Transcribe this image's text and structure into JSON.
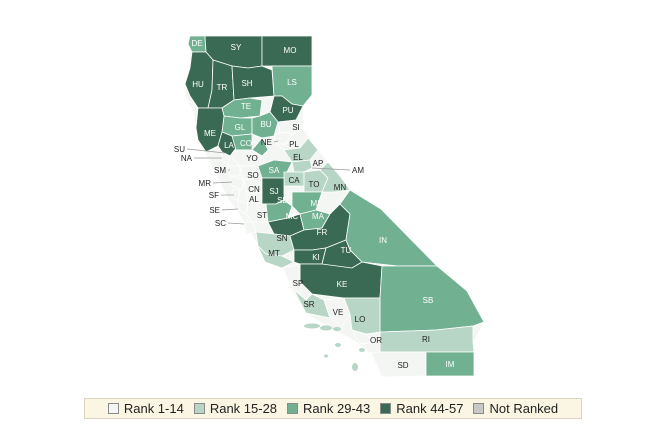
{
  "colors": {
    "rank_1_14": "#f4f6f4",
    "rank_15_28": "#b7d6c6",
    "rank_29_43": "#71b192",
    "rank_44_57": "#3a6a54",
    "not_ranked": "#c8c8c8",
    "border": "#ffffff",
    "leader": "#999999"
  },
  "legend": [
    {
      "label": "Rank 1-14",
      "color": "#f4f6f4"
    },
    {
      "label": "Rank 15-28",
      "color": "#b7d6c6"
    },
    {
      "label": "Rank 29-43",
      "color": "#71b192"
    },
    {
      "label": "Rank 44-57",
      "color": "#3a6a54"
    },
    {
      "label": "Not Ranked",
      "color": "#c8c8c8"
    }
  ],
  "counties": [
    {
      "code": "DE",
      "rank_group": "29-43"
    },
    {
      "code": "SY",
      "rank_group": "44-57"
    },
    {
      "code": "MO",
      "rank_group": "44-57"
    },
    {
      "code": "HU",
      "rank_group": "44-57"
    },
    {
      "code": "TR",
      "rank_group": "44-57"
    },
    {
      "code": "SH",
      "rank_group": "44-57"
    },
    {
      "code": "LS",
      "rank_group": "29-43"
    },
    {
      "code": "TE",
      "rank_group": "29-43"
    },
    {
      "code": "PU",
      "rank_group": "44-57"
    },
    {
      "code": "GL",
      "rank_group": "29-43"
    },
    {
      "code": "BU",
      "rank_group": "29-43"
    },
    {
      "code": "SI",
      "rank_group": "1-14"
    },
    {
      "code": "YU",
      "rank_group": "1-14"
    },
    {
      "code": "NE",
      "rank_group": "1-14"
    },
    {
      "code": "PL",
      "rank_group": "1-14"
    },
    {
      "code": "ME",
      "rank_group": "44-57"
    },
    {
      "code": "LA",
      "rank_group": "44-57"
    },
    {
      "code": "CO",
      "rank_group": "29-43"
    },
    {
      "code": "SU",
      "rank_group": "29-43"
    },
    {
      "code": "NA",
      "rank_group": "1-14"
    },
    {
      "code": "YO",
      "rank_group": "1-14"
    },
    {
      "code": "EL",
      "rank_group": "15-28"
    },
    {
      "code": "AP",
      "rank_group": "1-14"
    },
    {
      "code": "AM",
      "rank_group": "15-28"
    },
    {
      "code": "SM",
      "rank_group": "1-14"
    },
    {
      "code": "SO",
      "rank_group": "1-14"
    },
    {
      "code": "SA",
      "rank_group": "29-43"
    },
    {
      "code": "CA",
      "rank_group": "15-28"
    },
    {
      "code": "MR",
      "rank_group": "1-14"
    },
    {
      "code": "CN",
      "rank_group": "1-14"
    },
    {
      "code": "TO",
      "rank_group": "15-28"
    },
    {
      "code": "MN",
      "rank_group": "15-28"
    },
    {
      "code": "SF",
      "rank_group": "1-14"
    },
    {
      "code": "AL",
      "rank_group": "1-14"
    },
    {
      "code": "SJ",
      "rank_group": "44-57"
    },
    {
      "code": "SE",
      "rank_group": "1-14"
    },
    {
      "code": "ST",
      "rank_group": "1-14"
    },
    {
      "code": "SL",
      "rank_group": "29-43"
    },
    {
      "code": "MI",
      "rank_group": "29-43"
    },
    {
      "code": "MC",
      "rank_group": "44-57"
    },
    {
      "code": "MA",
      "rank_group": "29-43"
    },
    {
      "code": "SC",
      "rank_group": "1-14"
    },
    {
      "code": "SN",
      "rank_group": "15-28"
    },
    {
      "code": "FR",
      "rank_group": "44-57"
    },
    {
      "code": "IN",
      "rank_group": "29-43"
    },
    {
      "code": "MT",
      "rank_group": "15-28"
    },
    {
      "code": "KI",
      "rank_group": "44-57"
    },
    {
      "code": "TU",
      "rank_group": "44-57"
    },
    {
      "code": "KE",
      "rank_group": "44-57"
    },
    {
      "code": "SP",
      "rank_group": "1-14"
    },
    {
      "code": "SB",
      "rank_group": "29-43"
    },
    {
      "code": "SR",
      "rank_group": "15-28"
    },
    {
      "code": "VE",
      "rank_group": "1-14"
    },
    {
      "code": "LO",
      "rank_group": "15-28"
    },
    {
      "code": "OR",
      "rank_group": "1-14"
    },
    {
      "code": "RI",
      "rank_group": "15-28"
    },
    {
      "code": "SD",
      "rank_group": "1-14"
    },
    {
      "code": "IM",
      "rank_group": "29-43"
    }
  ]
}
